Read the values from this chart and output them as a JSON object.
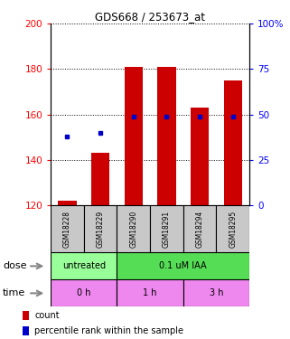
{
  "title": "GDS668 / 253673_at",
  "samples": [
    "GSM18228",
    "GSM18229",
    "GSM18290",
    "GSM18291",
    "GSM18294",
    "GSM18295"
  ],
  "count_values": [
    122,
    143,
    181,
    181,
    163,
    175
  ],
  "percentile_values": [
    38,
    40,
    49,
    49,
    49,
    49
  ],
  "ylim_left": [
    120,
    200
  ],
  "ylim_right": [
    0,
    100
  ],
  "yticks_left": [
    120,
    140,
    160,
    180,
    200
  ],
  "yticks_right": [
    0,
    25,
    50,
    75,
    100
  ],
  "bar_color": "#CC0000",
  "dot_color": "#0000CC",
  "dose_labels": [
    {
      "label": "untreated",
      "span": [
        0,
        2
      ],
      "color": "#99FF99"
    },
    {
      "label": "0.1 uM IAA",
      "span": [
        2,
        6
      ],
      "color": "#55DD55"
    }
  ],
  "time_labels": [
    {
      "label": "0 h",
      "span": [
        0,
        2
      ],
      "color": "#EE88EE"
    },
    {
      "label": "1 h",
      "span": [
        2,
        4
      ],
      "color": "#EE88EE"
    },
    {
      "label": "3 h",
      "span": [
        4,
        6
      ],
      "color": "#EE88EE"
    }
  ],
  "dose_row_label": "dose",
  "time_row_label": "time",
  "legend_count": "count",
  "legend_percentile": "percentile rank within the sample",
  "bar_width": 0.55
}
